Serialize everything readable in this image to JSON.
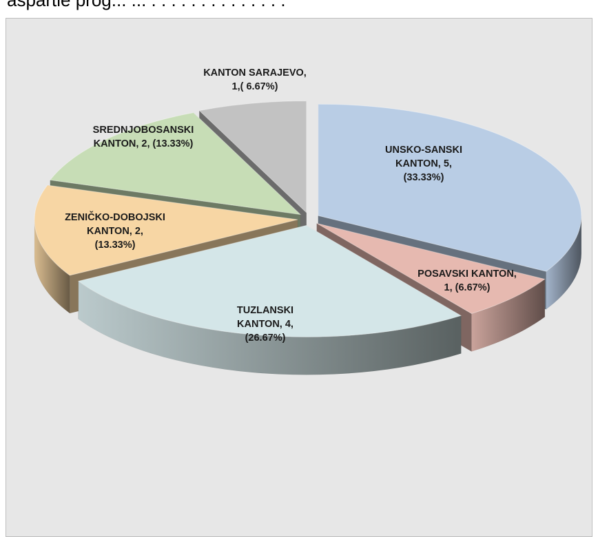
{
  "page": {
    "top_strip_text": "aspartie prog... ... . . . . . . . . . . . . . ."
  },
  "chart_data": {
    "type": "pie",
    "style": "3d-exploded",
    "title": "",
    "slices": [
      {
        "name": "UNSKO-SANSKI KANTON",
        "value": 5,
        "percent": "33.33%",
        "color": "#b9cde5",
        "label_lines": [
          "UNSKO-SANSKI",
          "KANTON, 5,",
          "(33.33%)"
        ]
      },
      {
        "name": "POSAVSKI KANTON",
        "value": 1,
        "percent": "6.67%",
        "color": "#e6b9b0",
        "label_lines": [
          "POSAVSKI KANTON,",
          "1, (6.67%)"
        ]
      },
      {
        "name": "TUZLANSKI KANTON",
        "value": 4,
        "percent": "26.67%",
        "color": "#d4e6e8",
        "label_lines": [
          "TUZLANSKI",
          "KANTON, 4,",
          "(26.67%)"
        ]
      },
      {
        "name": "ZENIČKO-DOBOJSKI KANTON",
        "value": 2,
        "percent": "13.33%",
        "color": "#f7d6a4",
        "label_lines": [
          "ZENIČKO-DOBOJSKI",
          "KANTON, 2,",
          "(13.33%)"
        ]
      },
      {
        "name": "SREDNJOBOSANSKI KANTON",
        "value": 2,
        "percent": "13.33%",
        "color": "#c7ddb6",
        "label_lines": [
          "SREDNJOBOSANSKI",
          "KANTON, 2, (13.33%)"
        ]
      },
      {
        "name": "KANTON SARAJEVO",
        "value": 1,
        "percent": "6.67%",
        "color": "#c2c2c2",
        "label_lines": [
          "KANTON SARAJEVO,",
          "1,( 6.67%)"
        ]
      }
    ]
  }
}
